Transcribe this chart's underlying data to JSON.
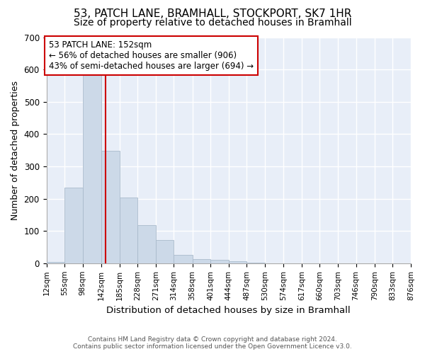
{
  "title": "53, PATCH LANE, BRAMHALL, STOCKPORT, SK7 1HR",
  "subtitle": "Size of property relative to detached houses in Bramhall",
  "xlabel": "Distribution of detached houses by size in Bramhall",
  "ylabel": "Number of detached properties",
  "property_label": "53 PATCH LANE: 152sqm",
  "annotation_line1": "← 56% of detached houses are smaller (906)",
  "annotation_line2": "43% of semi-detached houses are larger (694) →",
  "footer_line1": "Contains HM Land Registry data © Crown copyright and database right 2024.",
  "footer_line2": "Contains public sector information licensed under the Open Government Licence v3.0.",
  "bin_edges": [
    12,
    55,
    98,
    142,
    185,
    228,
    271,
    314,
    358,
    401,
    444,
    487,
    530,
    574,
    617,
    660,
    703,
    746,
    790,
    833,
    876
  ],
  "bar_heights": [
    5,
    234,
    588,
    348,
    203,
    119,
    72,
    26,
    13,
    10,
    7,
    1,
    0,
    0,
    0,
    0,
    0,
    0,
    0,
    0
  ],
  "bar_color": "#ccd9e8",
  "bar_edge_color": "#aabbcc",
  "vline_color": "#cc0000",
  "vline_x": 152,
  "annotation_box_color": "#cc0000",
  "plot_bg_color": "#e8eef8",
  "fig_bg_color": "#ffffff",
  "grid_color": "#ffffff",
  "ylim": [
    0,
    700
  ],
  "yticks": [
    0,
    100,
    200,
    300,
    400,
    500,
    600,
    700
  ],
  "title_fontsize": 11,
  "subtitle_fontsize": 10
}
